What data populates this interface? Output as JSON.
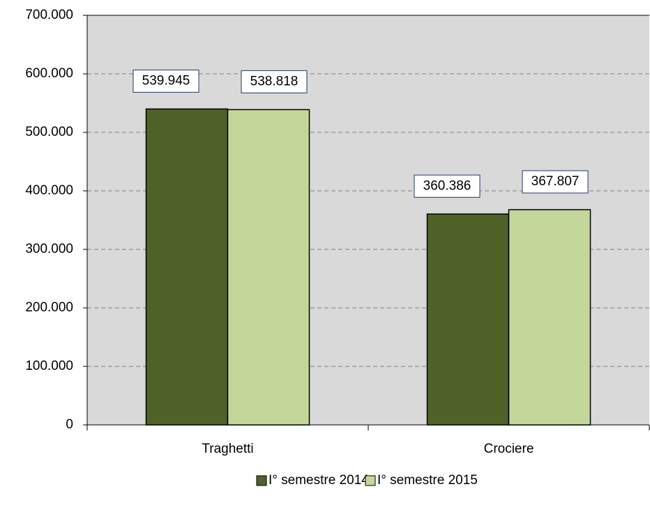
{
  "chart_data": {
    "type": "bar",
    "categories": [
      "Traghetti",
      "Crociere"
    ],
    "series": [
      {
        "name": "I° semestre 2014",
        "color": "#4f6228",
        "values": [
          539945,
          360386
        ],
        "value_labels": [
          "539.945",
          "360.386"
        ]
      },
      {
        "name": "I° semestre 2015",
        "color": "#c4d79b",
        "values": [
          538818,
          367807
        ],
        "value_labels": [
          "538.818",
          "367.807"
        ]
      }
    ],
    "ylim": [
      0,
      700000
    ],
    "yticks": [
      0,
      {
        "value": 100000,
        "label": "100.000"
      },
      {
        "value": 200000,
        "label": "200.000"
      },
      {
        "value": 300000,
        "label": "300.000"
      },
      {
        "value": 400000,
        "label": "400.000"
      },
      {
        "value": 500000,
        "label": "500.000"
      },
      {
        "value": 600000,
        "label": "600.000"
      },
      {
        "value": 700000,
        "label": "700.000"
      }
    ],
    "grid": true,
    "legend": "bottom"
  }
}
